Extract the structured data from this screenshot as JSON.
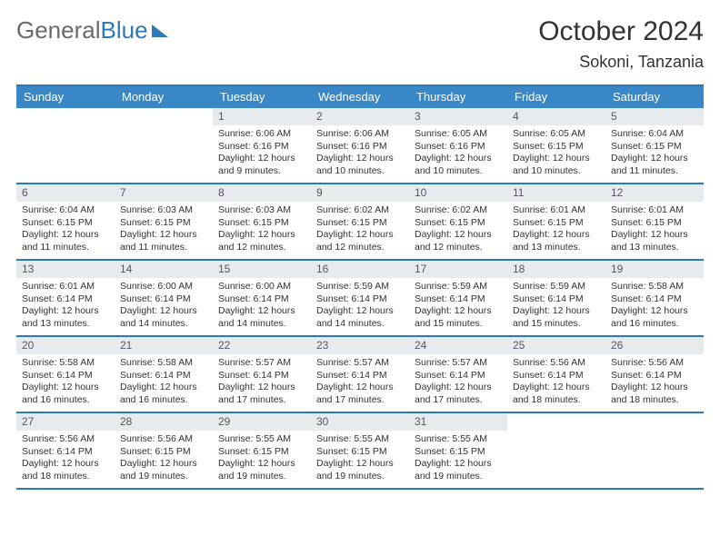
{
  "logo": {
    "part1": "General",
    "part2": "Blue"
  },
  "title": {
    "month": "October 2024",
    "location": "Sokoni, Tanzania"
  },
  "colors": {
    "header_bg": "#3a87c8",
    "border": "#2a7ab9",
    "daynum_bg": "#e8ebed",
    "text": "#333333"
  },
  "day_names": [
    "Sunday",
    "Monday",
    "Tuesday",
    "Wednesday",
    "Thursday",
    "Friday",
    "Saturday"
  ],
  "weeks": [
    [
      {
        "empty": true
      },
      {
        "empty": true
      },
      {
        "day": "1",
        "sunrise": "6:06 AM",
        "sunset": "6:16 PM",
        "daylight": "12 hours and 9 minutes."
      },
      {
        "day": "2",
        "sunrise": "6:06 AM",
        "sunset": "6:16 PM",
        "daylight": "12 hours and 10 minutes."
      },
      {
        "day": "3",
        "sunrise": "6:05 AM",
        "sunset": "6:16 PM",
        "daylight": "12 hours and 10 minutes."
      },
      {
        "day": "4",
        "sunrise": "6:05 AM",
        "sunset": "6:15 PM",
        "daylight": "12 hours and 10 minutes."
      },
      {
        "day": "5",
        "sunrise": "6:04 AM",
        "sunset": "6:15 PM",
        "daylight": "12 hours and 11 minutes."
      }
    ],
    [
      {
        "day": "6",
        "sunrise": "6:04 AM",
        "sunset": "6:15 PM",
        "daylight": "12 hours and 11 minutes."
      },
      {
        "day": "7",
        "sunrise": "6:03 AM",
        "sunset": "6:15 PM",
        "daylight": "12 hours and 11 minutes."
      },
      {
        "day": "8",
        "sunrise": "6:03 AM",
        "sunset": "6:15 PM",
        "daylight": "12 hours and 12 minutes."
      },
      {
        "day": "9",
        "sunrise": "6:02 AM",
        "sunset": "6:15 PM",
        "daylight": "12 hours and 12 minutes."
      },
      {
        "day": "10",
        "sunrise": "6:02 AM",
        "sunset": "6:15 PM",
        "daylight": "12 hours and 12 minutes."
      },
      {
        "day": "11",
        "sunrise": "6:01 AM",
        "sunset": "6:15 PM",
        "daylight": "12 hours and 13 minutes."
      },
      {
        "day": "12",
        "sunrise": "6:01 AM",
        "sunset": "6:15 PM",
        "daylight": "12 hours and 13 minutes."
      }
    ],
    [
      {
        "day": "13",
        "sunrise": "6:01 AM",
        "sunset": "6:14 PM",
        "daylight": "12 hours and 13 minutes."
      },
      {
        "day": "14",
        "sunrise": "6:00 AM",
        "sunset": "6:14 PM",
        "daylight": "12 hours and 14 minutes."
      },
      {
        "day": "15",
        "sunrise": "6:00 AM",
        "sunset": "6:14 PM",
        "daylight": "12 hours and 14 minutes."
      },
      {
        "day": "16",
        "sunrise": "5:59 AM",
        "sunset": "6:14 PM",
        "daylight": "12 hours and 14 minutes."
      },
      {
        "day": "17",
        "sunrise": "5:59 AM",
        "sunset": "6:14 PM",
        "daylight": "12 hours and 15 minutes."
      },
      {
        "day": "18",
        "sunrise": "5:59 AM",
        "sunset": "6:14 PM",
        "daylight": "12 hours and 15 minutes."
      },
      {
        "day": "19",
        "sunrise": "5:58 AM",
        "sunset": "6:14 PM",
        "daylight": "12 hours and 16 minutes."
      }
    ],
    [
      {
        "day": "20",
        "sunrise": "5:58 AM",
        "sunset": "6:14 PM",
        "daylight": "12 hours and 16 minutes."
      },
      {
        "day": "21",
        "sunrise": "5:58 AM",
        "sunset": "6:14 PM",
        "daylight": "12 hours and 16 minutes."
      },
      {
        "day": "22",
        "sunrise": "5:57 AM",
        "sunset": "6:14 PM",
        "daylight": "12 hours and 17 minutes."
      },
      {
        "day": "23",
        "sunrise": "5:57 AM",
        "sunset": "6:14 PM",
        "daylight": "12 hours and 17 minutes."
      },
      {
        "day": "24",
        "sunrise": "5:57 AM",
        "sunset": "6:14 PM",
        "daylight": "12 hours and 17 minutes."
      },
      {
        "day": "25",
        "sunrise": "5:56 AM",
        "sunset": "6:14 PM",
        "daylight": "12 hours and 18 minutes."
      },
      {
        "day": "26",
        "sunrise": "5:56 AM",
        "sunset": "6:14 PM",
        "daylight": "12 hours and 18 minutes."
      }
    ],
    [
      {
        "day": "27",
        "sunrise": "5:56 AM",
        "sunset": "6:14 PM",
        "daylight": "12 hours and 18 minutes."
      },
      {
        "day": "28",
        "sunrise": "5:56 AM",
        "sunset": "6:15 PM",
        "daylight": "12 hours and 19 minutes."
      },
      {
        "day": "29",
        "sunrise": "5:55 AM",
        "sunset": "6:15 PM",
        "daylight": "12 hours and 19 minutes."
      },
      {
        "day": "30",
        "sunrise": "5:55 AM",
        "sunset": "6:15 PM",
        "daylight": "12 hours and 19 minutes."
      },
      {
        "day": "31",
        "sunrise": "5:55 AM",
        "sunset": "6:15 PM",
        "daylight": "12 hours and 19 minutes."
      },
      {
        "empty": true
      },
      {
        "empty": true
      }
    ]
  ],
  "labels": {
    "sunrise_prefix": "Sunrise: ",
    "sunset_prefix": "Sunset: ",
    "daylight_prefix": "Daylight: "
  }
}
